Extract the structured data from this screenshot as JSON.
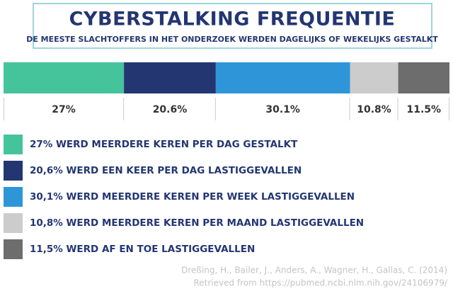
{
  "chart_data": {
    "type": "bar",
    "stacked": true,
    "title": "CYBERSTALKING FREQUENTIE",
    "subtitle": "DE MEESTE SLACHTOFFERS IN HET ONDERZOEK WERDEN DAGELIJKS OF WEKELIJKS GESTALKT",
    "series": [
      {
        "name": "27% WERD MEERDERE KEREN PER DAG GESTALKT",
        "color": "#45c39a",
        "values": [
          27
        ],
        "value_labels": [
          "27%"
        ]
      },
      {
        "name": "20,6% WERD EEN KEER PER DAG LASTIGGEVALLEN",
        "color": "#233672",
        "values": [
          20.6
        ],
        "value_labels": [
          "20.6%"
        ]
      },
      {
        "name": "30,1% WERD MEERDERE KEREN PER WEEK LASTIGGEVALLEN",
        "color": "#2e96d8",
        "values": [
          30.1
        ],
        "value_labels": [
          "30.1%"
        ]
      },
      {
        "name": "10,8% WERD MEERDERE KEREN PER MAAND LASTIGGEVALLEN",
        "color": "#cccccc",
        "values": [
          10.8
        ],
        "value_labels": [
          "10.8%"
        ]
      },
      {
        "name": "11,5% WERD AF EN TOE LASTIGGEVALLEN",
        "color": "#6d6d6d",
        "values": [
          11.5
        ],
        "value_labels": [
          "11.5%"
        ]
      }
    ],
    "source": [
      "Dreßing, H., Bailer, J., Anders, A., Wagner, H., Gallas, C. (2014)",
      "Retrieved from https://pubmed.ncbi.nlm.nih.gov/24106979/"
    ]
  }
}
